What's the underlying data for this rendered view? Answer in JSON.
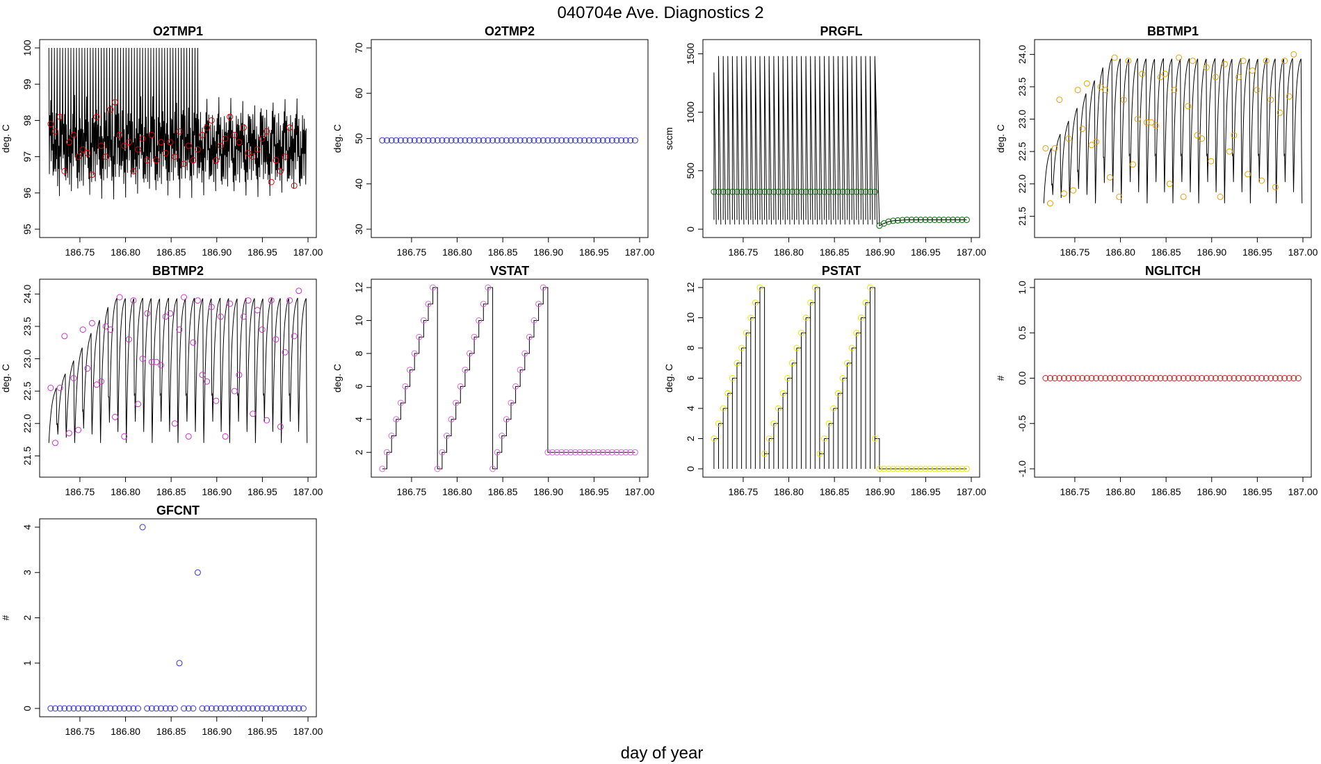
{
  "figure": {
    "title": "040704e   Ave. Diagnostics 2",
    "xlabel": "day of year"
  },
  "chart_data": [
    {
      "type": "line",
      "title": "O2TMP1",
      "ylabel": "deg. C",
      "xlim": [
        186.715,
        187.0
      ],
      "ylim": [
        95,
        100
      ],
      "x_ticks": [
        "186.75",
        "186.80",
        "186.85",
        "186.90",
        "186.95",
        "187.00"
      ],
      "y_ticks": [
        "95",
        "96",
        "97",
        "98",
        "99",
        "100"
      ],
      "marker_color": "#dd0000",
      "line_y_range": [
        95.1,
        100
      ],
      "series": [
        {
          "values": [
            97.9,
            97.7,
            98.1,
            96.6,
            97.4,
            97.6,
            97.0,
            97.2,
            97.1,
            96.5,
            98.1,
            97.3,
            97.0,
            98.3,
            98.5,
            97.6,
            97.3,
            97.4,
            96.6,
            97.2,
            97.5,
            96.9,
            97.6,
            96.9,
            97.4,
            97.1,
            97.4,
            97.0,
            97.7,
            96.8,
            97.3,
            96.9,
            97.2,
            97.6,
            97.8,
            98.0,
            96.9,
            97.3,
            97.5,
            98.1,
            97.6,
            97.4,
            97.8,
            97.1,
            97.0,
            97.2,
            97.5,
            97.7,
            96.3,
            96.9,
            96.6,
            97.0,
            97.8,
            96.2
          ]
        }
      ]
    },
    {
      "type": "scatter",
      "title": "O2TMP2",
      "ylabel": "deg. C",
      "xlim": [
        186.715,
        187.0
      ],
      "ylim": [
        30,
        70
      ],
      "x_ticks": [
        "186.75",
        "186.80",
        "186.85",
        "186.90",
        "186.95",
        "187.00"
      ],
      "y_ticks": [
        "30",
        "40",
        "50",
        "60",
        "70"
      ],
      "marker_color": "#3333cc",
      "series": [
        {
          "values": [
            49.6,
            49.6,
            49.6,
            49.6,
            49.6,
            49.6,
            49.6,
            49.6,
            49.6,
            49.6,
            49.6,
            49.6,
            49.6,
            49.6,
            49.6,
            49.6,
            49.6,
            49.6,
            49.6,
            49.6,
            49.6,
            49.6,
            49.6,
            49.6,
            49.6,
            49.6,
            49.6,
            49.6,
            49.6,
            49.6,
            49.6,
            49.6,
            49.6,
            49.6,
            49.6,
            49.6,
            49.6,
            49.6,
            49.6,
            49.6,
            49.6,
            49.6,
            49.6,
            49.6,
            49.6,
            49.6,
            49.6,
            49.6,
            49.6,
            49.6,
            49.6,
            49.6,
            49.6,
            49.6,
            49.6,
            49.6
          ]
        }
      ]
    },
    {
      "type": "line",
      "title": "PRGFL",
      "ylabel": "sccm",
      "xlim": [
        186.715,
        187.0
      ],
      "ylim": [
        0,
        1550
      ],
      "x_ticks": [
        "186.75",
        "186.80",
        "186.85",
        "186.90",
        "186.95",
        "187.00"
      ],
      "y_ticks": [
        "0",
        "500",
        "1000",
        "1500"
      ],
      "marker_color": "#006600",
      "series": [
        {
          "values": [
            320,
            320,
            320,
            320,
            320,
            320,
            320,
            320,
            320,
            320,
            320,
            320,
            320,
            320,
            320,
            320,
            320,
            320,
            320,
            320,
            320,
            320,
            320,
            320,
            320,
            320,
            320,
            320,
            320,
            320,
            320,
            320,
            320,
            320,
            320,
            320,
            30,
            50,
            65,
            72,
            75,
            78,
            80,
            80,
            80,
            80,
            80,
            80,
            80,
            80,
            80,
            80,
            80,
            80,
            80,
            80
          ]
        }
      ]
    },
    {
      "type": "line",
      "title": "BBTMP1",
      "ylabel": "deg. C",
      "xlim": [
        186.715,
        187.0
      ],
      "ylim": [
        21.3,
        24.1
      ],
      "x_ticks": [
        "186.75",
        "186.80",
        "186.85",
        "186.90",
        "186.95",
        "187.00"
      ],
      "y_ticks": [
        "21.5",
        "22.0",
        "22.5",
        "23.0",
        "23.5",
        "24.0"
      ],
      "marker_color": "#e69f00",
      "series": [
        {
          "values": [
            22.55,
            21.7,
            22.55,
            23.3,
            21.85,
            22.7,
            21.9,
            23.45,
            22.85,
            23.55,
            22.6,
            22.65,
            23.5,
            23.45,
            22.1,
            23.95,
            21.8,
            23.3,
            23.9,
            22.3,
            23.0,
            23.7,
            22.95,
            22.95,
            22.9,
            23.65,
            23.7,
            22.0,
            23.45,
            23.95,
            21.8,
            23.2,
            23.9,
            22.75,
            22.7,
            23.8,
            22.35,
            23.65,
            21.8,
            23.85,
            22.5,
            22.75,
            23.65,
            23.9,
            22.15,
            23.75,
            23.45,
            22.05,
            23.9,
            23.3,
            21.95,
            23.1,
            23.9,
            23.35,
            24.0
          ]
        }
      ]
    },
    {
      "type": "line",
      "title": "BBTMP2",
      "ylabel": "deg. C",
      "xlim": [
        186.715,
        187.0
      ],
      "ylim": [
        21.3,
        24.1
      ],
      "x_ticks": [
        "186.75",
        "186.80",
        "186.85",
        "186.90",
        "186.95",
        "187.00"
      ],
      "y_ticks": [
        "21.5",
        "22.0",
        "22.5",
        "23.0",
        "23.5",
        "24.0"
      ],
      "marker_color": "#cc33cc",
      "series": [
        {
          "values": [
            22.55,
            21.7,
            22.55,
            23.35,
            21.85,
            22.7,
            21.9,
            23.45,
            22.85,
            23.55,
            22.6,
            22.65,
            23.5,
            23.45,
            22.1,
            23.95,
            21.8,
            23.3,
            23.9,
            22.3,
            23.0,
            23.7,
            22.95,
            22.95,
            22.9,
            23.65,
            23.7,
            22.0,
            23.45,
            23.95,
            21.8,
            23.25,
            23.9,
            22.75,
            22.65,
            23.8,
            22.35,
            23.65,
            21.8,
            23.85,
            22.5,
            22.75,
            23.65,
            23.9,
            22.15,
            23.75,
            23.45,
            22.05,
            23.9,
            23.3,
            21.95,
            23.1,
            23.9,
            23.35,
            24.05
          ]
        }
      ]
    },
    {
      "type": "line",
      "title": "VSTAT",
      "ylabel": "deg. C",
      "xlim": [
        186.715,
        187.0
      ],
      "ylim": [
        1,
        12
      ],
      "x_ticks": [
        "186.75",
        "186.80",
        "186.85",
        "186.90",
        "186.95",
        "187.00"
      ],
      "y_ticks": [
        "2",
        "4",
        "6",
        "8",
        "10",
        "12"
      ],
      "marker_color": "#dd66dd",
      "series": [
        {
          "values": [
            1,
            2,
            3,
            4,
            5,
            6,
            7,
            8,
            9,
            10,
            11,
            12,
            1,
            2,
            3,
            4,
            5,
            6,
            7,
            8,
            9,
            10,
            11,
            12,
            1,
            2,
            3,
            4,
            5,
            6,
            7,
            8,
            9,
            10,
            11,
            12,
            2,
            2,
            2,
            2,
            2,
            2,
            2,
            2,
            2,
            2,
            2,
            2,
            2,
            2,
            2,
            2,
            2,
            2,
            2,
            2
          ]
        }
      ]
    },
    {
      "type": "line",
      "title": "PSTAT",
      "ylabel": "deg. C",
      "xlim": [
        186.715,
        187.0
      ],
      "ylim": [
        0,
        12
      ],
      "x_ticks": [
        "186.75",
        "186.80",
        "186.85",
        "186.90",
        "186.95",
        "187.00"
      ],
      "y_ticks": [
        "0",
        "2",
        "4",
        "6",
        "8",
        "10",
        "12"
      ],
      "marker_color": "#e6e600",
      "series": [
        {
          "values": [
            2,
            3,
            4,
            5,
            6,
            7,
            8,
            9,
            10,
            11,
            12,
            1,
            2,
            3,
            4,
            5,
            6,
            7,
            8,
            9,
            10,
            11,
            12,
            1,
            2,
            3,
            4,
            5,
            6,
            7,
            8,
            9,
            10,
            11,
            12,
            2,
            0,
            0,
            0,
            0,
            0,
            0,
            0,
            0,
            0,
            0,
            0,
            0,
            0,
            0,
            0,
            0,
            0,
            0,
            0,
            0
          ]
        }
      ]
    },
    {
      "type": "scatter",
      "title": "NGLITCH",
      "ylabel": "#",
      "xlim": [
        186.715,
        187.0
      ],
      "ylim": [
        -1,
        1
      ],
      "x_ticks": [
        "186.75",
        "186.80",
        "186.85",
        "186.90",
        "186.95",
        "187.00"
      ],
      "y_ticks": [
        "-1.0",
        "-0.5",
        "0.0",
        "0.5",
        "1.0"
      ],
      "marker_color": "#cc2222",
      "series": [
        {
          "values": [
            0,
            0,
            0,
            0,
            0,
            0,
            0,
            0,
            0,
            0,
            0,
            0,
            0,
            0,
            0,
            0,
            0,
            0,
            0,
            0,
            0,
            0,
            0,
            0,
            0,
            0,
            0,
            0,
            0,
            0,
            0,
            0,
            0,
            0,
            0,
            0,
            0,
            0,
            0,
            0,
            0,
            0,
            0,
            0,
            0,
            0,
            0,
            0,
            0,
            0,
            0,
            0,
            0,
            0,
            0,
            0
          ]
        }
      ]
    },
    {
      "type": "scatter",
      "title": "GFCNT",
      "ylabel": "#",
      "xlim": [
        186.715,
        187.0
      ],
      "ylim": [
        0,
        4
      ],
      "x_ticks": [
        "186.75",
        "186.80",
        "186.85",
        "186.90",
        "186.95",
        "187.00"
      ],
      "y_ticks": [
        "0",
        "1",
        "2",
        "3",
        "4"
      ],
      "marker_color": "#3333cc",
      "series": [
        {
          "values": [
            0,
            0,
            0,
            0,
            0,
            0,
            0,
            0,
            0,
            0,
            0,
            0,
            0,
            0,
            0,
            0,
            0,
            0,
            0,
            0,
            4,
            0,
            0,
            0,
            0,
            0,
            0,
            0,
            1,
            0,
            0,
            0,
            3,
            0,
            0,
            0,
            0,
            0,
            0,
            0,
            0,
            0,
            0,
            0,
            0,
            0,
            0,
            0,
            0,
            0,
            0,
            0,
            0,
            0,
            0,
            0
          ]
        }
      ]
    }
  ]
}
